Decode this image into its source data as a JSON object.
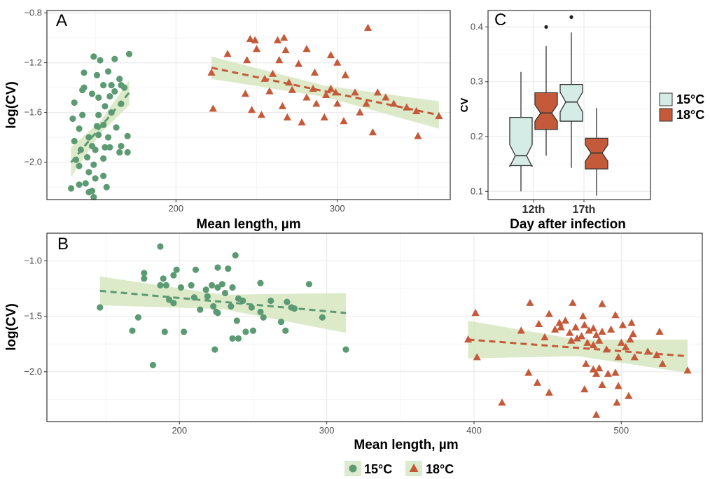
{
  "colors": {
    "c15": "#5b9a72",
    "c18": "#c45a3a",
    "band": "#d6e6bf",
    "box15": "#d4ebe6",
    "grid": "#ebebeb",
    "gridMinor": "#f4f4f4"
  },
  "legend": {
    "c15": "15°C",
    "c18": "18°C"
  },
  "chart_data": [
    {
      "panel": "A",
      "type": "scatter",
      "xlabel": "Mean length, µm",
      "ylabel": "log(CV)",
      "xlim": [
        120,
        370
      ],
      "ylim": [
        -2.3,
        -0.78
      ],
      "xticks": [
        200,
        300
      ],
      "yticks": [
        -2.0,
        -1.6,
        -1.2,
        -0.8
      ],
      "series": [
        {
          "name": "15°C",
          "marker": "circle",
          "points": [
            [
              149,
              -1.15
            ],
            [
              153,
              -1.18
            ],
            [
              162,
              -1.17
            ],
            [
              171,
              -1.13
            ],
            [
              151,
              -1.3
            ],
            [
              143,
              -1.28
            ],
            [
              158,
              -1.27
            ],
            [
              165,
              -1.33
            ],
            [
              142,
              -1.42
            ],
            [
              160,
              -1.38
            ],
            [
              166,
              -1.38
            ],
            [
              143,
              -1.4
            ],
            [
              148,
              -1.45
            ],
            [
              155,
              -1.38
            ],
            [
              162,
              -1.43
            ],
            [
              168,
              -1.4
            ],
            [
              152,
              -1.48
            ],
            [
              159,
              -1.47
            ],
            [
              166,
              -1.53
            ],
            [
              137,
              -1.52
            ],
            [
              156,
              -1.55
            ],
            [
              142,
              -1.62
            ],
            [
              152,
              -1.62
            ],
            [
              160,
              -1.6
            ],
            [
              136,
              -1.65
            ],
            [
              155,
              -1.7
            ],
            [
              151,
              -1.71
            ],
            [
              163,
              -1.72
            ],
            [
              140,
              -1.73
            ],
            [
              146,
              -1.8
            ],
            [
              152,
              -1.78
            ],
            [
              158,
              -1.8
            ],
            [
              170,
              -1.79
            ],
            [
              137,
              -1.83
            ],
            [
              148,
              -1.87
            ],
            [
              156,
              -1.88
            ],
            [
              166,
              -1.87
            ],
            [
              141,
              -1.9
            ],
            [
              150,
              -1.9
            ],
            [
              159,
              -1.88
            ],
            [
              165,
              -1.92
            ],
            [
              170,
              -1.92
            ],
            [
              145,
              -1.96
            ],
            [
              155,
              -1.97
            ],
            [
              138,
              -1.98
            ],
            [
              149,
              -2.02
            ],
            [
              140,
              -2.03
            ],
            [
              146,
              -2.08
            ],
            [
              150,
              -2.13
            ],
            [
              155,
              -2.11
            ],
            [
              140,
              -2.18
            ],
            [
              135,
              -2.21
            ],
            [
              146,
              -2.24
            ],
            [
              149,
              -2.28
            ],
            [
              157,
              -2.2
            ],
            [
              144,
              -2.17
            ],
            [
              148,
              -2.23
            ]
          ]
        },
        {
          "name": "18°C",
          "marker": "triangle",
          "points": [
            [
              222,
              -1.28
            ],
            [
              232,
              -1.13
            ],
            [
              246,
              -1.01
            ],
            [
              249,
              -1.02
            ],
            [
              263,
              -1.02
            ],
            [
              267,
              -1.0
            ],
            [
              250,
              -1.09
            ],
            [
              268,
              -1.1
            ],
            [
              281,
              -1.09
            ],
            [
              244,
              -1.18
            ],
            [
              264,
              -1.18
            ],
            [
              276,
              -1.21
            ],
            [
              296,
              -1.14
            ],
            [
              319,
              -0.92
            ],
            [
              260,
              -1.29
            ],
            [
              286,
              -1.28
            ],
            [
              300,
              -1.2
            ],
            [
              255,
              -1.33
            ],
            [
              270,
              -1.36
            ],
            [
              305,
              -1.3
            ],
            [
              243,
              -1.45
            ],
            [
              258,
              -1.43
            ],
            [
              272,
              -1.42
            ],
            [
              285,
              -1.41
            ],
            [
              296,
              -1.41
            ],
            [
              299,
              -1.44
            ],
            [
              311,
              -1.44
            ],
            [
              325,
              -1.44
            ],
            [
              281,
              -1.48
            ],
            [
              293,
              -1.46
            ],
            [
              330,
              -1.48
            ],
            [
              300,
              -1.53
            ],
            [
              318,
              -1.53
            ],
            [
              335,
              -1.53
            ],
            [
              247,
              -1.58
            ],
            [
              266,
              -1.55
            ],
            [
              287,
              -1.53
            ],
            [
              314,
              -1.6
            ],
            [
              343,
              -1.56
            ],
            [
              349,
              -1.59
            ],
            [
              223,
              -1.57
            ],
            [
              253,
              -1.62
            ],
            [
              269,
              -1.64
            ],
            [
              292,
              -1.64
            ],
            [
              304,
              -1.67
            ],
            [
              363,
              -1.63
            ],
            [
              278,
              -1.68
            ],
            [
              322,
              -1.76
            ],
            [
              350,
              -1.79
            ]
          ]
        }
      ],
      "fits": [
        {
          "name": "15°C",
          "x": [
            135,
            171
          ],
          "y": [
            -2.0,
            -1.44
          ],
          "band_half": [
            0.12,
            0.1
          ]
        },
        {
          "name": "18°C",
          "x": [
            222,
            363
          ],
          "y": [
            -1.24,
            -1.62
          ],
          "band_half": [
            0.09,
            0.11
          ]
        }
      ]
    },
    {
      "panel": "B",
      "type": "scatter",
      "xlabel": "Mean length, µm",
      "ylabel": "log(CV)",
      "xlim": [
        110,
        555
      ],
      "ylim": [
        -2.45,
        -0.75
      ],
      "xticks": [
        200,
        300,
        400,
        500
      ],
      "yticks": [
        -2.0,
        -1.5,
        -1.0
      ],
      "series": [
        {
          "name": "15°C",
          "marker": "circle",
          "points": [
            [
              187,
              -0.87
            ],
            [
              238,
              -0.95
            ],
            [
              176,
              -1.11
            ],
            [
              198,
              -1.08
            ],
            [
              211,
              -1.08
            ],
            [
              226,
              -1.06
            ],
            [
              233,
              -1.07
            ],
            [
              176,
              -1.16
            ],
            [
              189,
              -1.16
            ],
            [
              196,
              -1.13
            ],
            [
              201,
              -1.24
            ],
            [
              208,
              -1.22
            ],
            [
              218,
              -1.26
            ],
            [
              226,
              -1.24
            ],
            [
              229,
              -1.21
            ],
            [
              236,
              -1.24
            ],
            [
              255,
              -1.2
            ],
            [
              288,
              -1.21
            ],
            [
              187,
              -1.22
            ],
            [
              191,
              -1.22
            ],
            [
              222,
              -1.22
            ],
            [
              219,
              -1.32
            ],
            [
              231,
              -1.29
            ],
            [
              240,
              -1.34
            ],
            [
              243,
              -1.36
            ],
            [
              273,
              -1.37
            ],
            [
              193,
              -1.35
            ],
            [
              210,
              -1.33
            ],
            [
              196,
              -1.38
            ],
            [
              223,
              -1.41
            ],
            [
              235,
              -1.41
            ],
            [
              249,
              -1.42
            ],
            [
              262,
              -1.36
            ],
            [
              278,
              -1.43
            ],
            [
              146,
              -1.42
            ],
            [
              214,
              -1.44
            ],
            [
              225,
              -1.46
            ],
            [
              255,
              -1.46
            ],
            [
              276,
              -1.42
            ],
            [
              172,
              -1.51
            ],
            [
              226,
              -1.47
            ],
            [
              239,
              -1.54
            ],
            [
              257,
              -1.51
            ],
            [
              269,
              -1.55
            ],
            [
              297,
              -1.51
            ],
            [
              168,
              -1.63
            ],
            [
              190,
              -1.64
            ],
            [
              203,
              -1.64
            ],
            [
              245,
              -1.64
            ],
            [
              250,
              -1.63
            ],
            [
              272,
              -1.63
            ],
            [
              224,
              -1.8
            ],
            [
              236,
              -1.7
            ],
            [
              240,
              -1.7
            ],
            [
              182,
              -1.94
            ],
            [
              313,
              -1.8
            ]
          ]
        },
        {
          "name": "18°C",
          "marker": "triangle",
          "points": [
            [
              401,
              -1.47
            ],
            [
              438,
              -1.38
            ],
            [
              451,
              -1.48
            ],
            [
              467,
              -1.38
            ],
            [
              474,
              -1.5
            ],
            [
              487,
              -1.39
            ],
            [
              496,
              -1.49
            ],
            [
              396,
              -1.71
            ],
            [
              402,
              -1.87
            ],
            [
              432,
              -1.63
            ],
            [
              444,
              -1.57
            ],
            [
              455,
              -1.62
            ],
            [
              458,
              -1.56
            ],
            [
              459,
              -1.6
            ],
            [
              462,
              -1.54
            ],
            [
              465,
              -1.65
            ],
            [
              469,
              -1.6
            ],
            [
              475,
              -1.58
            ],
            [
              478,
              -1.63
            ],
            [
              481,
              -1.61
            ],
            [
              483,
              -1.67
            ],
            [
              487,
              -1.64
            ],
            [
              493,
              -1.62
            ],
            [
              501,
              -1.58
            ],
            [
              507,
              -1.56
            ],
            [
              508,
              -1.66
            ],
            [
              526,
              -1.64
            ],
            [
              448,
              -1.69
            ],
            [
              466,
              -1.72
            ],
            [
              470,
              -1.7
            ],
            [
              473,
              -1.68
            ],
            [
              477,
              -1.74
            ],
            [
              481,
              -1.76
            ],
            [
              485,
              -1.72
            ],
            [
              490,
              -1.8
            ],
            [
              500,
              -1.74
            ],
            [
              503,
              -1.78
            ],
            [
              506,
              -1.71
            ],
            [
              524,
              -1.85
            ],
            [
              545,
              -1.99
            ],
            [
              437,
              -2.01
            ],
            [
              443,
              -2.1
            ],
            [
              451,
              -2.19
            ],
            [
              476,
              -1.93
            ],
            [
              481,
              -1.98
            ],
            [
              485,
              -1.97
            ],
            [
              491,
              -2.02
            ],
            [
              496,
              -2.01
            ],
            [
              498,
              -1.87
            ],
            [
              509,
              -1.87
            ],
            [
              518,
              -1.82
            ],
            [
              528,
              -1.93
            ],
            [
              475,
              -2.16
            ],
            [
              483,
              -2.02
            ],
            [
              487,
              -2.12
            ],
            [
              497,
              -2.28
            ],
            [
              505,
              -2.22
            ],
            [
              419,
              -2.28
            ],
            [
              483,
              -2.39
            ],
            [
              498,
              -2.13
            ]
          ]
        }
      ],
      "fits": [
        {
          "name": "15°C",
          "x": [
            146,
            313
          ],
          "y": [
            -1.27,
            -1.47
          ],
          "band_half": [
            0.13,
            0.18
          ]
        },
        {
          "name": "18°C",
          "x": [
            396,
            545
          ],
          "y": [
            -1.71,
            -1.86
          ],
          "band_half": [
            0.17,
            0.15
          ]
        }
      ]
    },
    {
      "panel": "C",
      "type": "box",
      "xlabel": "Day after infection",
      "ylabel": "CV",
      "categories": [
        "12th",
        "17th"
      ],
      "ylim": [
        0.085,
        0.43
      ],
      "yticks": [
        0.1,
        0.2,
        0.3,
        0.4
      ],
      "boxes": [
        {
          "day": "12th",
          "group": "15°C",
          "min": 0.1,
          "q1": 0.147,
          "median": 0.165,
          "q3": 0.235,
          "max": 0.318,
          "notch": [
            0.145,
            0.185
          ],
          "outliers": []
        },
        {
          "day": "12th",
          "group": "18°C",
          "min": 0.165,
          "q1": 0.213,
          "median": 0.243,
          "q3": 0.28,
          "max": 0.365,
          "notch": [
            0.228,
            0.258
          ],
          "outliers": [
            0.4
          ]
        },
        {
          "day": "17th",
          "group": "15°C",
          "min": 0.143,
          "q1": 0.228,
          "median": 0.263,
          "q3": 0.295,
          "max": 0.39,
          "notch": [
            0.245,
            0.281
          ],
          "outliers": [
            0.418
          ]
        },
        {
          "day": "17th",
          "group": "18°C",
          "min": 0.092,
          "q1": 0.141,
          "median": 0.17,
          "q3": 0.197,
          "max": 0.252,
          "notch": [
            0.155,
            0.185
          ],
          "outliers": []
        }
      ]
    }
  ]
}
